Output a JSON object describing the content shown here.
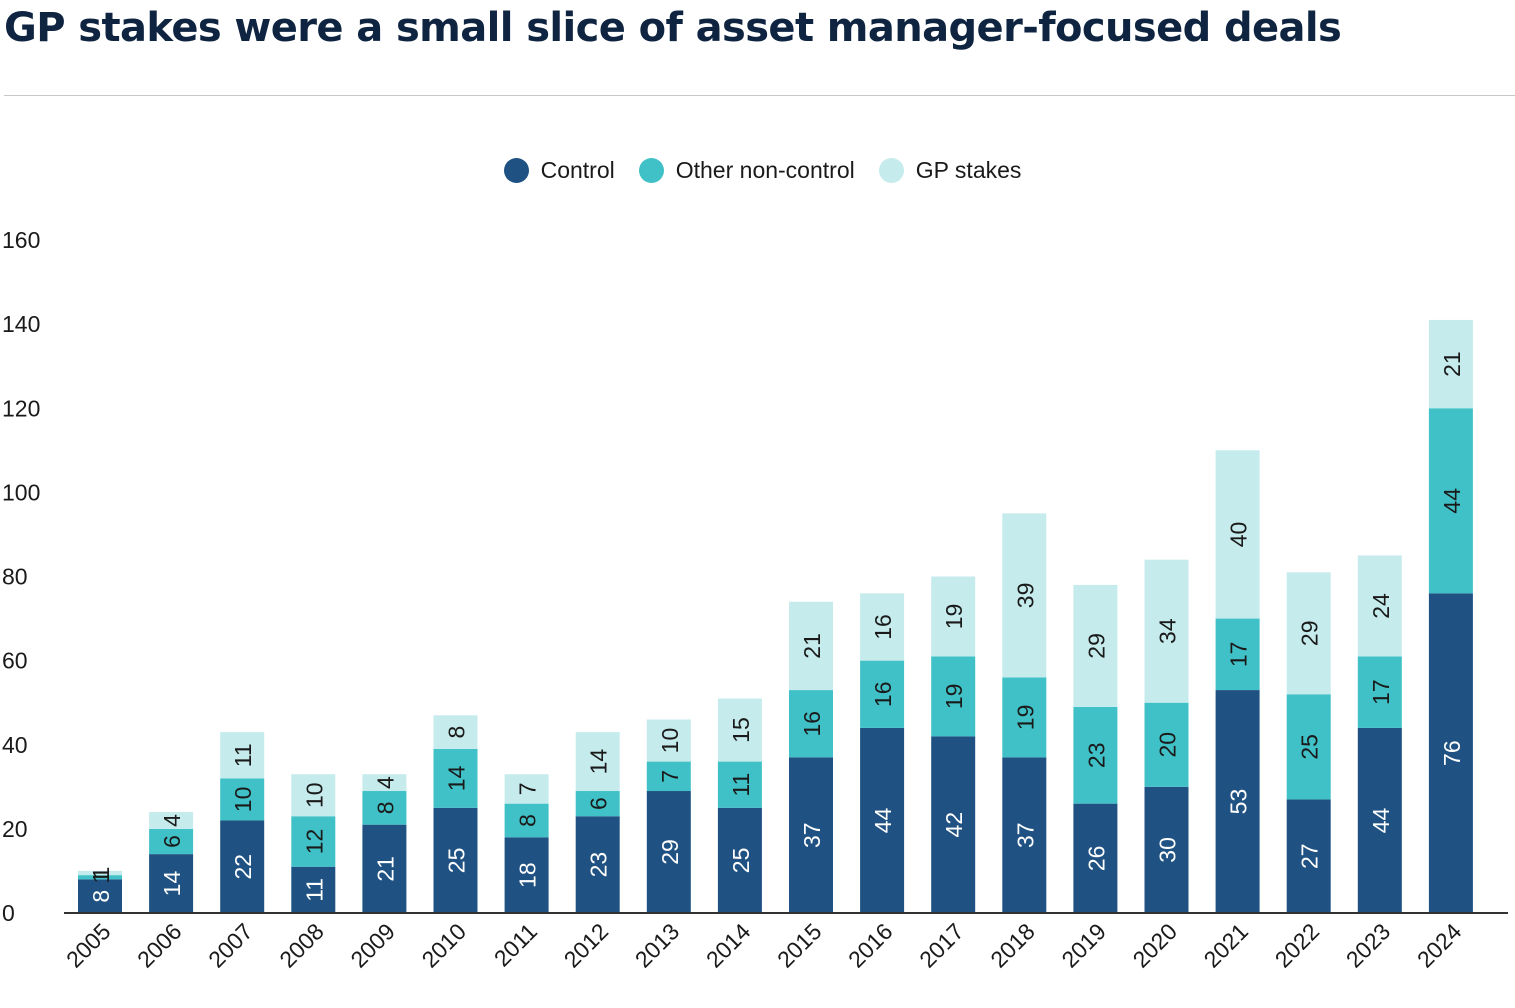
{
  "title": "GP stakes were a small slice of asset manager-focused deals",
  "colors": {
    "control": "#1f5282",
    "other_non_control": "#40c1c7",
    "gp_stakes": "#c5ebec",
    "axis": "#333333",
    "text": "#1a1a1a"
  },
  "legend": [
    {
      "label": "Control",
      "color_key": "control"
    },
    {
      "label": "Other non-control",
      "color_key": "other_non_control"
    },
    {
      "label": "GP stakes",
      "color_key": "gp_stakes"
    }
  ],
  "chart_data": {
    "type": "bar",
    "stacked": true,
    "title": "GP stakes were a small slice of asset manager-focused deals",
    "xlabel": "",
    "ylabel": "",
    "ylim": [
      0,
      160
    ],
    "yticks": [
      0,
      20,
      40,
      60,
      80,
      100,
      120,
      140,
      160
    ],
    "grid": false,
    "legend_position": "top-center",
    "categories": [
      "2005",
      "2006",
      "2007",
      "2008",
      "2009",
      "2010",
      "2011",
      "2012",
      "2013",
      "2014",
      "2015",
      "2016",
      "2017",
      "2018",
      "2019",
      "2020",
      "2021",
      "2022",
      "2023",
      "2024"
    ],
    "series": [
      {
        "name": "Control",
        "color_key": "control",
        "values": [
          8,
          14,
          22,
          11,
          21,
          25,
          18,
          23,
          29,
          25,
          37,
          44,
          42,
          37,
          26,
          30,
          53,
          27,
          44,
          76
        ]
      },
      {
        "name": "Other non-control",
        "color_key": "other_non_control",
        "values": [
          1,
          6,
          10,
          12,
          8,
          14,
          8,
          6,
          7,
          11,
          16,
          16,
          19,
          19,
          23,
          20,
          17,
          25,
          17,
          44
        ]
      },
      {
        "name": "GP stakes",
        "color_key": "gp_stakes",
        "values": [
          1,
          4,
          11,
          10,
          4,
          8,
          7,
          14,
          10,
          15,
          21,
          16,
          19,
          39,
          29,
          34,
          40,
          29,
          24,
          21
        ]
      }
    ]
  }
}
